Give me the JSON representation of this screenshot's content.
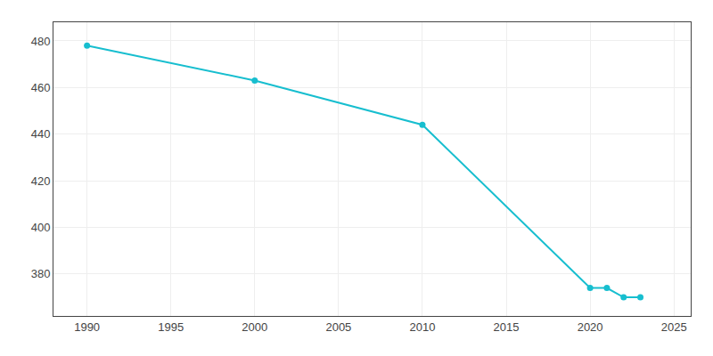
{
  "chart_data": {
    "type": "line",
    "x": [
      1990,
      2000,
      2010,
      2020,
      2021,
      2022,
      2023
    ],
    "values": [
      478,
      463,
      444,
      374,
      374,
      370,
      370
    ],
    "color": "#17becf",
    "marker": "circle",
    "xlim": [
      1988,
      2026
    ],
    "ylim": [
      362,
      488
    ],
    "xticks": [
      1990,
      1995,
      2000,
      2005,
      2010,
      2015,
      2020,
      2025
    ],
    "yticks": [
      380,
      400,
      420,
      440,
      460,
      480
    ],
    "grid": true
  }
}
